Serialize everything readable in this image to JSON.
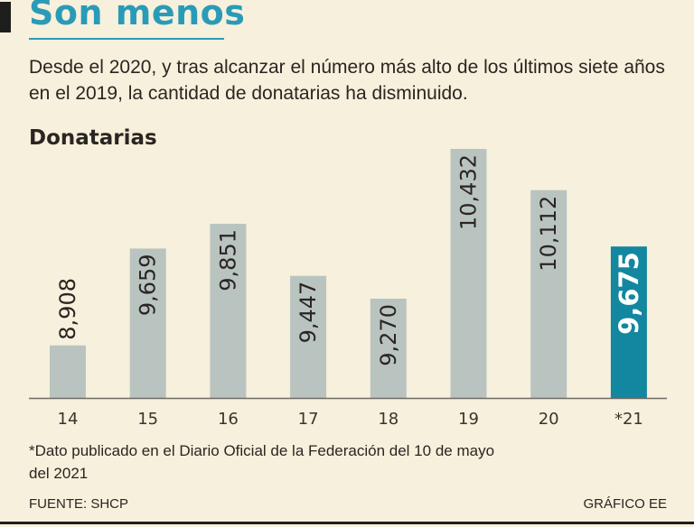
{
  "header": {
    "title": "Son menos",
    "subtitle": "Desde el 2020, y tras alcanzar el número más alto de los últimos siete años en el 2019, la cantidad de donatarias ha disminuido."
  },
  "chart_label": "Donatarias",
  "chart_data": {
    "type": "bar",
    "title": "Donatarias",
    "categories": [
      "14",
      "15",
      "16",
      "17",
      "18",
      "19",
      "20",
      "*21"
    ],
    "values": [
      8908,
      9659,
      9851,
      9447,
      9270,
      10432,
      10112,
      9675
    ],
    "value_labels": [
      "8,908",
      "9,659",
      "9,851",
      "9,447",
      "9,270",
      "10,432",
      "10,112",
      "9,675"
    ],
    "highlight_index": 7,
    "xlabel": "",
    "ylabel": "",
    "ylim": [
      8500,
      10600
    ],
    "grid": false
  },
  "colors": {
    "background": "#f7f0dc",
    "bar": "#b9c4c1",
    "highlight_bar": "#12879f",
    "accent": "#2a9bb7",
    "text": "#2b2522",
    "highlight_text": "#ffffff"
  },
  "footnote": "*Dato publicado en el Diario Oficial de la Federación del 10 de mayo del 2021",
  "source": "FUENTE: SHCP",
  "credit": "GRÁFICO EE"
}
